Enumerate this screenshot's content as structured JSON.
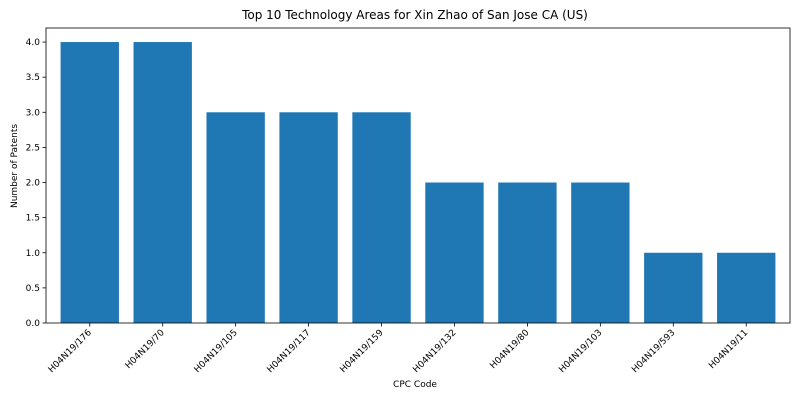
{
  "chart_data": {
    "type": "bar",
    "title": "Top 10 Technology Areas for Xin Zhao of San Jose CA (US)",
    "xlabel": "CPC Code",
    "ylabel": "Number of Patents",
    "categories": [
      "H04N19/176",
      "H04N19/70",
      "H04N19/105",
      "H04N19/117",
      "H04N19/159",
      "H04N19/132",
      "H04N19/80",
      "H04N19/103",
      "H04N19/593",
      "H04N19/11"
    ],
    "values": [
      4,
      4,
      3,
      3,
      3,
      2,
      2,
      2,
      1,
      1
    ],
    "ylim": [
      0,
      4.2
    ],
    "yticks": [
      "0.0",
      "0.5",
      "1.0",
      "1.5",
      "2.0",
      "2.5",
      "3.0",
      "3.5",
      "4.0"
    ],
    "grid": false,
    "bar_color": "#1f77b4"
  }
}
